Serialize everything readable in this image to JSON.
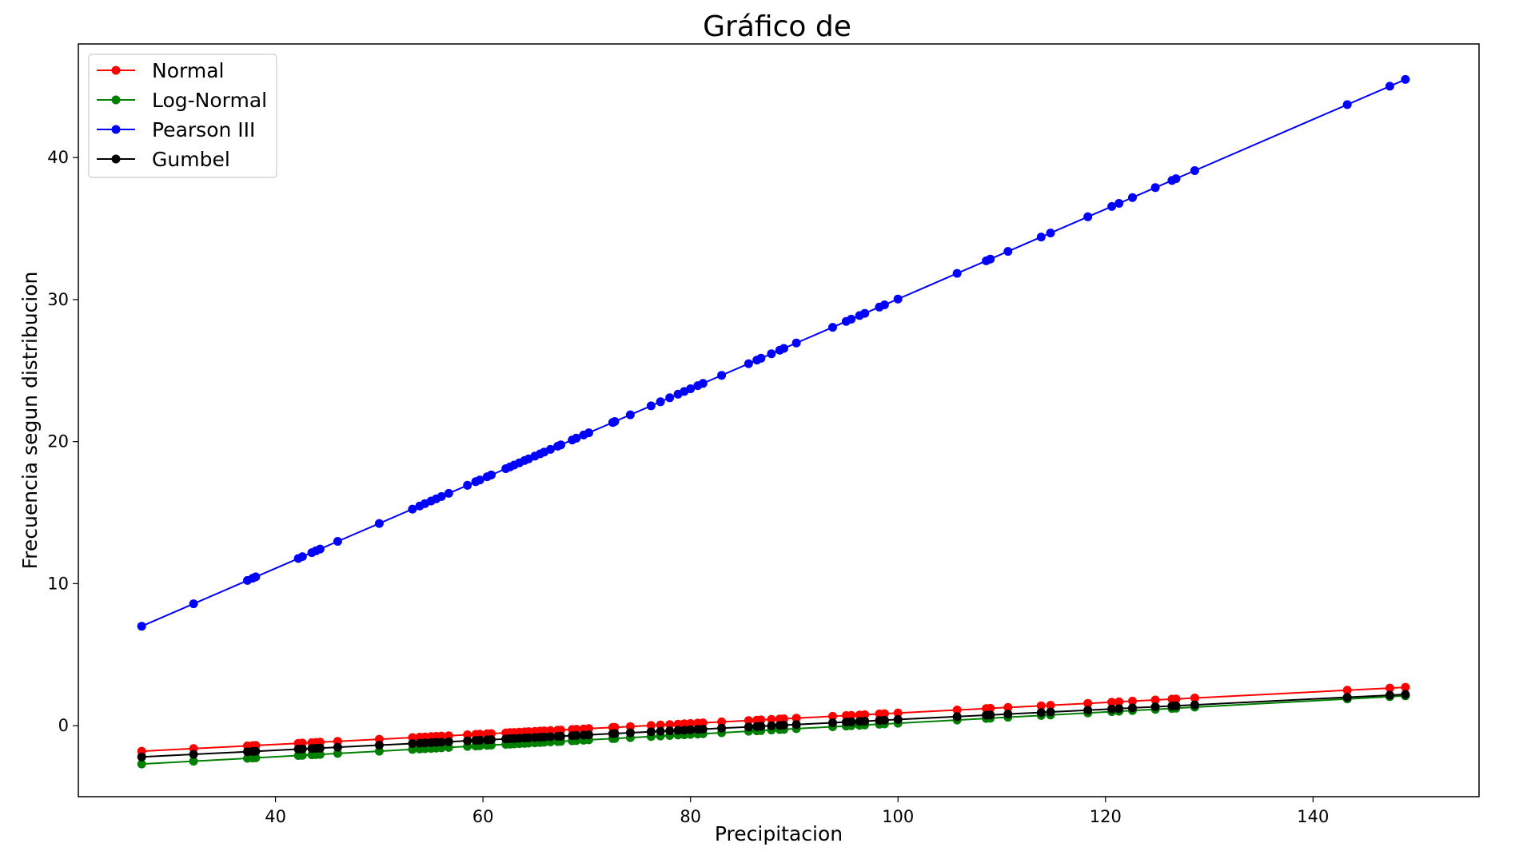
{
  "chart_data": {
    "type": "line",
    "title": "Gráfico de",
    "xlabel": "Precipitacion",
    "ylabel": "Frecuencia segun distribucion",
    "xlim": [
      21,
      156
    ],
    "ylim": [
      -5,
      48
    ],
    "xticks": [
      40,
      60,
      80,
      100,
      120,
      140
    ],
    "yticks": [
      0,
      10,
      20,
      30,
      40
    ],
    "grid": false,
    "legend_position": "top-left",
    "x": [
      27.1,
      32.1,
      37.3,
      37.8,
      38.1,
      42.2,
      42.6,
      43.5,
      43.9,
      44.3,
      46.0,
      50.0,
      53.2,
      53.9,
      54.4,
      55.0,
      55.5,
      56.0,
      56.7,
      58.5,
      59.3,
      59.7,
      60.4,
      60.8,
      62.2,
      62.6,
      63.0,
      63.5,
      64.0,
      64.4,
      65.0,
      65.5,
      65.9,
      66.5,
      67.2,
      67.5,
      68.6,
      69.0,
      69.7,
      70.2,
      72.5,
      72.7,
      74.2,
      76.2,
      77.1,
      78.0,
      78.8,
      79.4,
      80.0,
      80.7,
      81.2,
      83.0,
      85.6,
      86.4,
      86.8,
      87.8,
      88.6,
      89.0,
      90.2,
      93.7,
      95.0,
      95.5,
      96.3,
      96.8,
      98.2,
      98.7,
      100.0,
      105.7,
      108.5,
      108.9,
      110.6,
      113.8,
      114.7,
      118.3,
      120.6,
      121.3,
      122.6,
      124.8,
      126.4,
      126.8,
      128.6,
      143.3,
      147.4,
      148.9
    ],
    "series": [
      {
        "name": "Normal",
        "color": "#ff0000",
        "y0": -1.8,
        "y1": 2.7
      },
      {
        "name": "Log-Normal",
        "color": "#008000",
        "y0": -2.7,
        "y1": 2.1
      },
      {
        "name": "Pearson III",
        "color": "#0000ff",
        "y0": 7.0,
        "y1": 45.5
      },
      {
        "name": "Gumbel",
        "color": "#000000",
        "y0": -2.2,
        "y1": 2.2
      }
    ]
  }
}
